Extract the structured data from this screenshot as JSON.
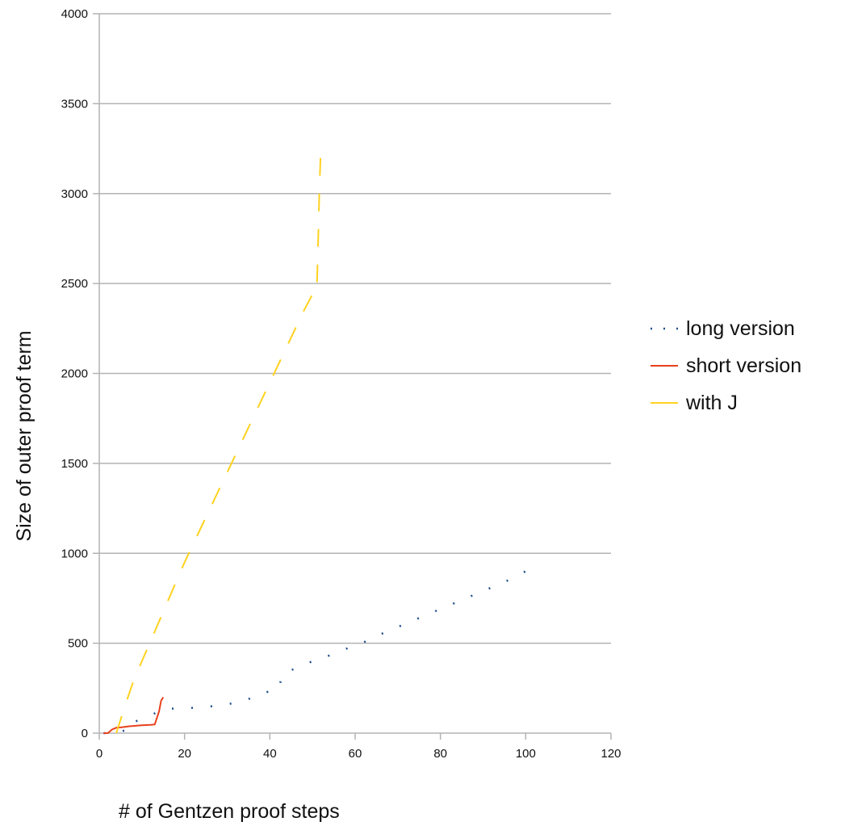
{
  "chart_data": {
    "type": "line",
    "title": "",
    "xlabel": "# of Gentzen proof steps",
    "ylabel": "Size of outer proof term",
    "xlim": [
      0,
      120
    ],
    "ylim": [
      0,
      4000
    ],
    "x_ticks": [
      0,
      20,
      40,
      60,
      80,
      100,
      120
    ],
    "y_ticks": [
      0,
      500,
      1000,
      1500,
      2000,
      2500,
      3000,
      3500,
      4000
    ],
    "grid": "horizontal",
    "legend_position": "right",
    "series": [
      {
        "name": "long version",
        "style": "dotted",
        "color": "#1f4e8c",
        "points": [
          [
            1,
            0
          ],
          [
            2,
            0
          ],
          [
            3,
            0
          ],
          [
            4,
            5
          ],
          [
            5,
            10
          ],
          [
            6,
            15
          ],
          [
            7,
            20
          ],
          [
            8,
            30
          ],
          [
            8,
            60
          ],
          [
            9,
            70
          ],
          [
            10,
            80
          ],
          [
            11,
            90
          ],
          [
            12,
            100
          ],
          [
            13,
            110
          ],
          [
            14,
            125
          ],
          [
            15,
            135
          ],
          [
            20,
            138
          ],
          [
            25,
            145
          ],
          [
            28,
            155
          ],
          [
            30,
            160
          ],
          [
            32,
            170
          ],
          [
            35,
            190
          ],
          [
            38,
            215
          ],
          [
            40,
            235
          ],
          [
            42,
            240
          ],
          [
            43,
            330
          ],
          [
            45,
            350
          ],
          [
            50,
            400
          ],
          [
            55,
            440
          ],
          [
            60,
            490
          ],
          [
            62,
            505
          ],
          [
            65,
            540
          ],
          [
            70,
            590
          ],
          [
            75,
            640
          ],
          [
            80,
            690
          ],
          [
            85,
            740
          ],
          [
            90,
            790
          ],
          [
            95,
            840
          ],
          [
            98,
            875
          ],
          [
            100,
            900
          ]
        ]
      },
      {
        "name": "short version",
        "style": "solid",
        "color": "#e8401c",
        "points": [
          [
            1,
            0
          ],
          [
            2,
            0
          ],
          [
            3,
            20
          ],
          [
            4,
            30
          ],
          [
            5,
            32
          ],
          [
            6,
            35
          ],
          [
            7,
            38
          ],
          [
            8,
            40
          ],
          [
            9,
            42
          ],
          [
            10,
            44
          ],
          [
            11,
            45
          ],
          [
            12,
            46
          ],
          [
            13,
            48
          ],
          [
            14,
            120
          ],
          [
            14.5,
            180
          ],
          [
            15,
            200
          ]
        ]
      },
      {
        "name": "with J",
        "style": "dashed",
        "color": "#ffd21f",
        "points": [
          [
            4,
            0
          ],
          [
            6,
            150
          ],
          [
            8,
            290
          ],
          [
            10,
            400
          ],
          [
            12,
            510
          ],
          [
            14,
            620
          ],
          [
            16,
            730
          ],
          [
            18,
            840
          ],
          [
            20,
            950
          ],
          [
            22,
            1050
          ],
          [
            24,
            1150
          ],
          [
            26,
            1250
          ],
          [
            28,
            1350
          ],
          [
            30,
            1450
          ],
          [
            32,
            1550
          ],
          [
            34,
            1650
          ],
          [
            36,
            1750
          ],
          [
            38,
            1850
          ],
          [
            40,
            1950
          ],
          [
            42,
            2050
          ],
          [
            44,
            2150
          ],
          [
            46,
            2250
          ],
          [
            48,
            2350
          ],
          [
            50,
            2440
          ],
          [
            51,
            2440
          ],
          [
            51.3,
            2700
          ],
          [
            51.6,
            3000
          ],
          [
            52,
            3280
          ]
        ]
      }
    ]
  }
}
